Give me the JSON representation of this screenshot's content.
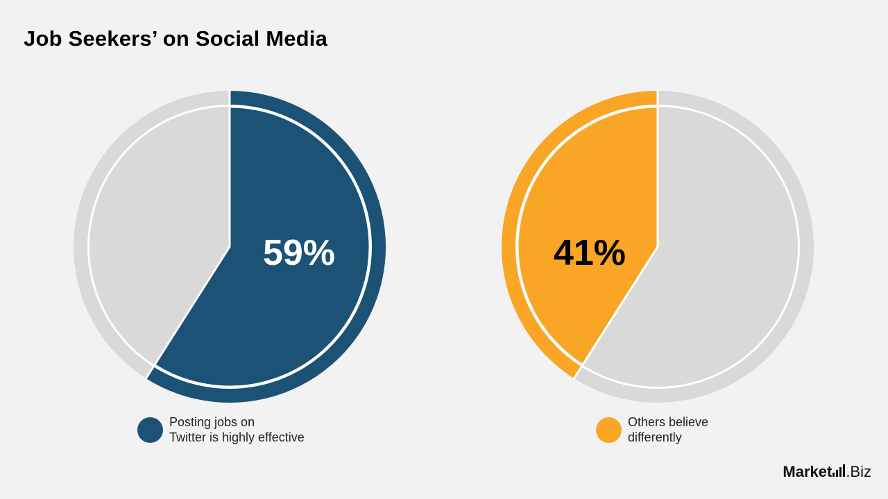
{
  "title": "Job Seekers’ on Social Media",
  "colors": {
    "background": "#f2f2f2",
    "blue": "#1b5276",
    "orange": "#f9a626",
    "grey": "#d9d9d9",
    "white": "#ffffff"
  },
  "chart_data": [
    {
      "type": "pie",
      "slices": [
        {
          "label": "Posting jobs on Twitter is highly effective",
          "value": 59,
          "color": "#1b5276"
        },
        {
          "label": "",
          "value": 41,
          "color": "#d9d9d9"
        }
      ],
      "data_label": "59%",
      "legend": "bottom"
    },
    {
      "type": "pie",
      "slices": [
        {
          "label": "Others believe differently",
          "value": 41,
          "color": "#f9a626"
        },
        {
          "label": "",
          "value": 59,
          "color": "#d9d9d9"
        }
      ],
      "data_label": "41%",
      "legend": "bottom"
    }
  ],
  "legend": {
    "left": {
      "line1": "Posting jobs on",
      "line2": "Twitter is highly effective",
      "color": "#1b5276"
    },
    "right": {
      "line1": "Others believe",
      "line2": "differently",
      "color": "#f9a626"
    }
  },
  "logo": {
    "part1": "Market",
    "part2": ".Biz",
    "icon": "bar-chart-icon"
  }
}
